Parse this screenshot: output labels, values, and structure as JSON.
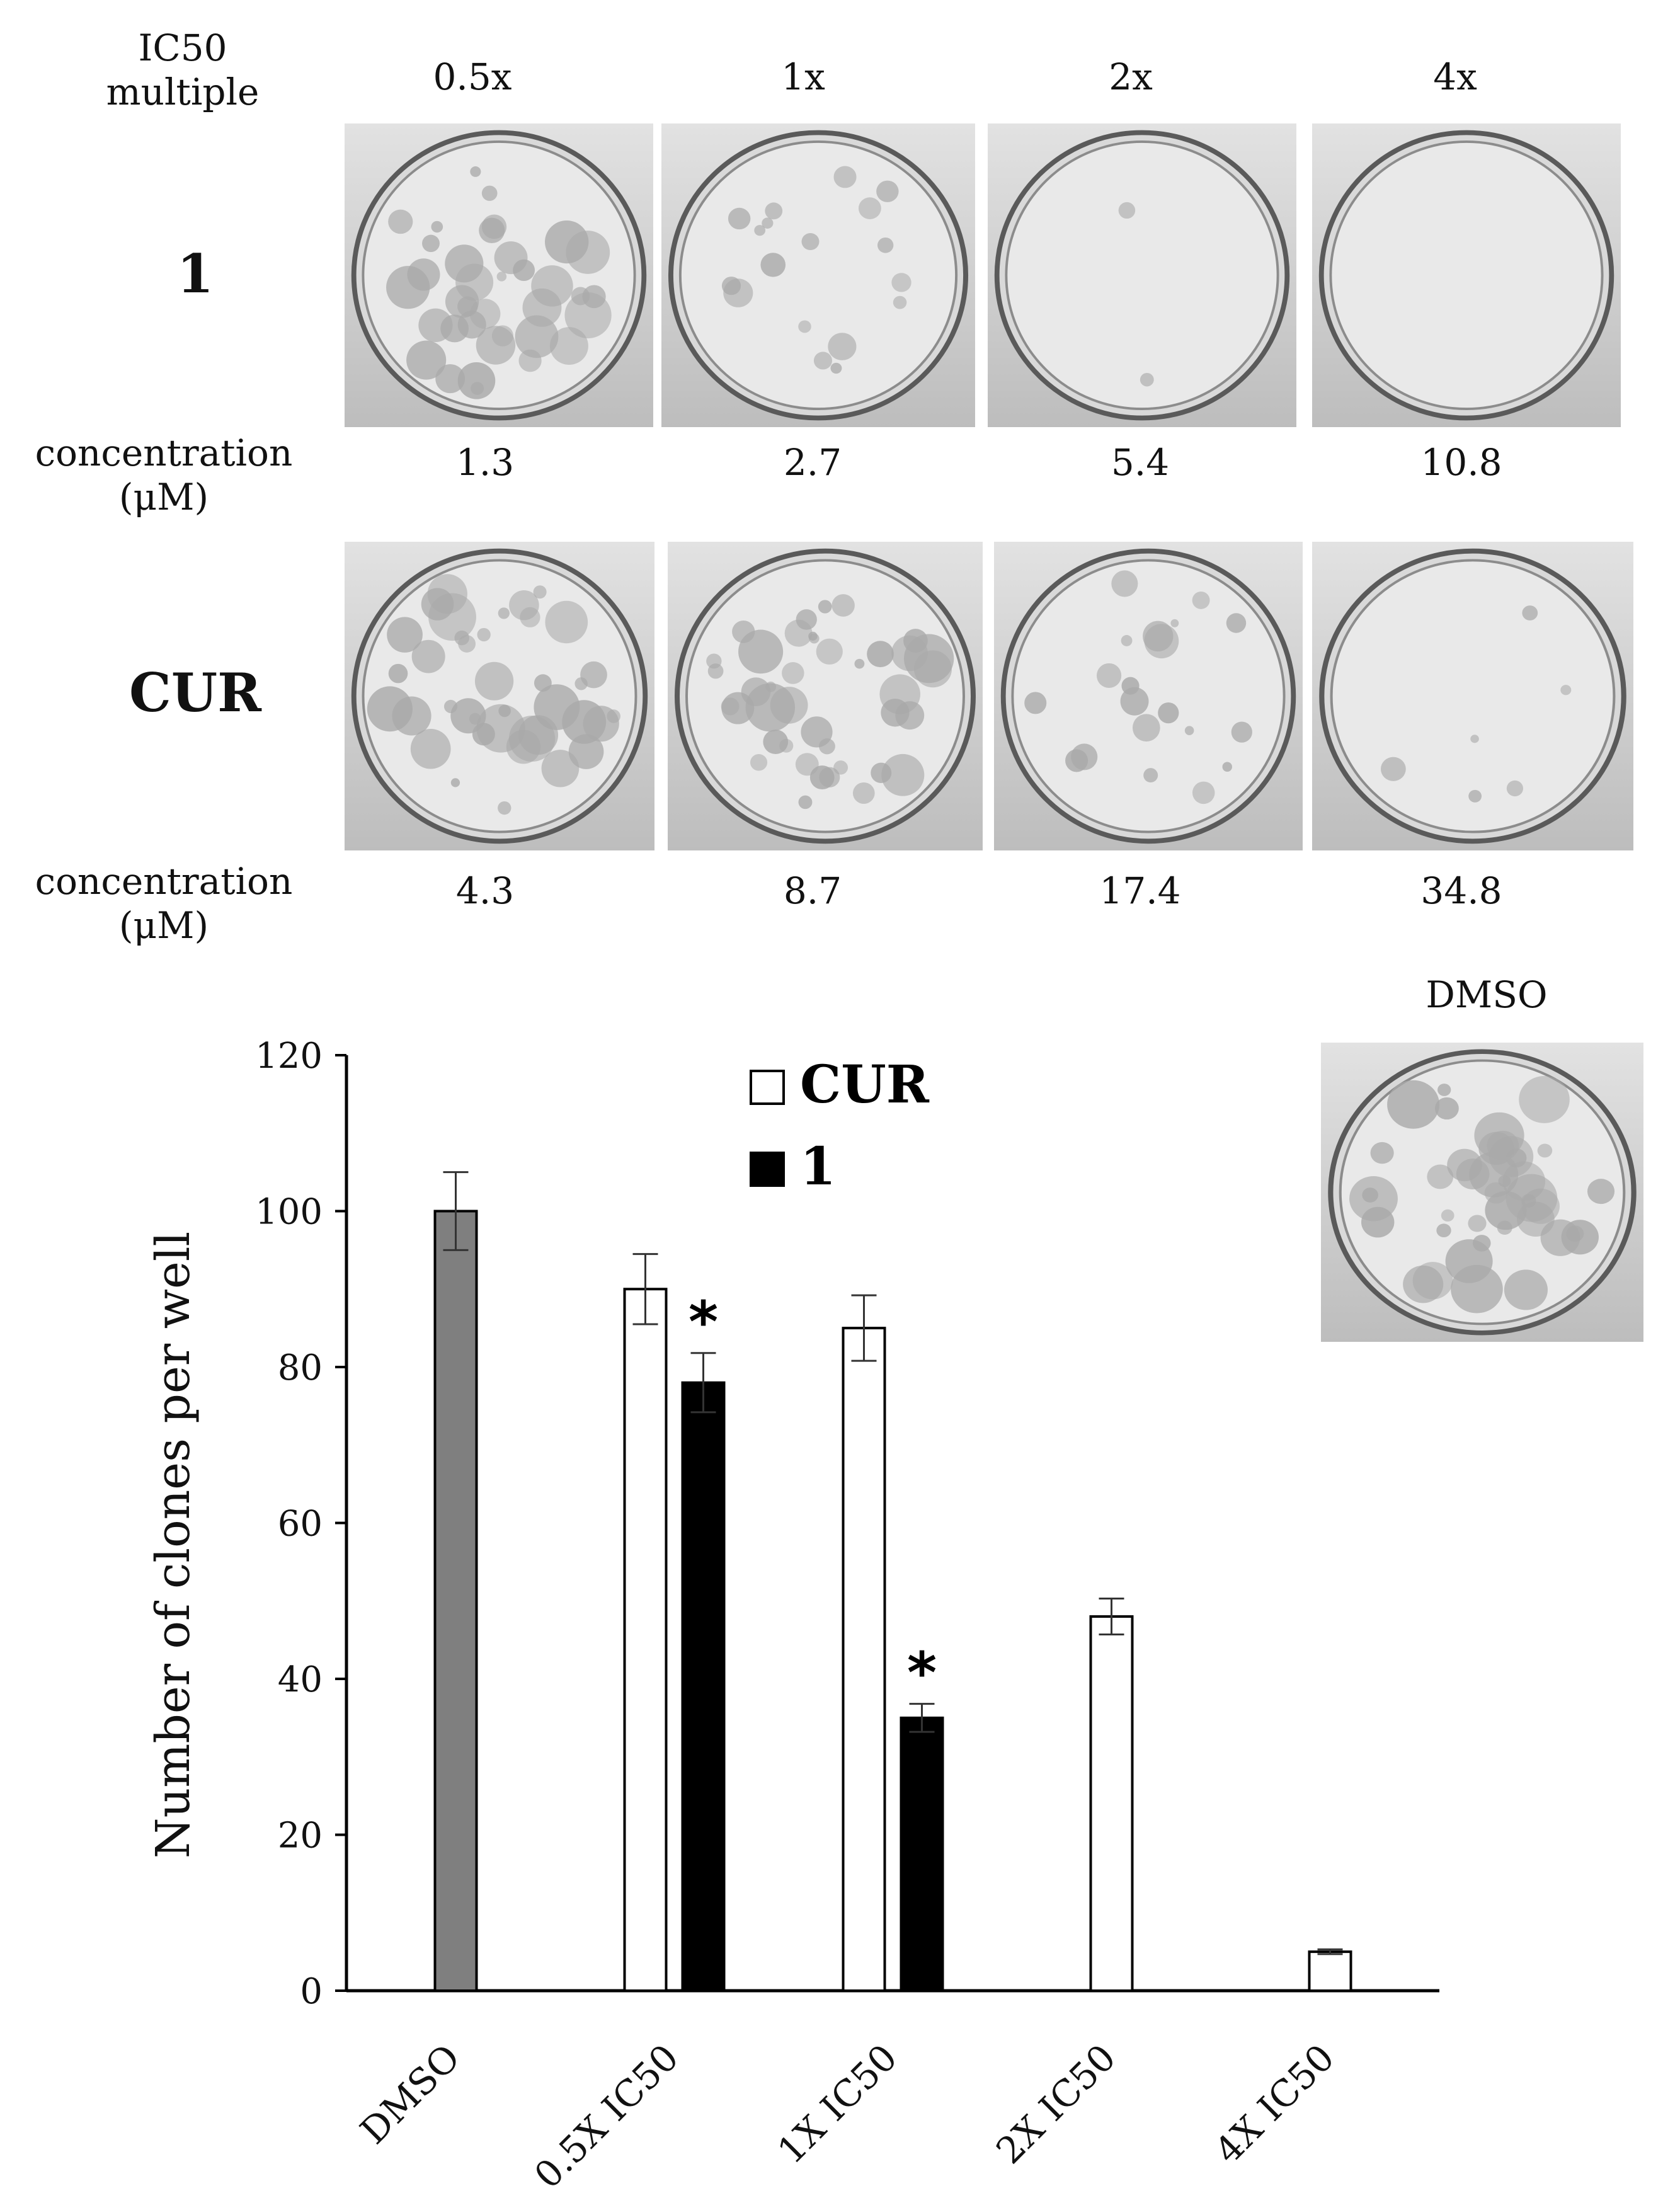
{
  "panel_a": {
    "header_label": "IC50\nmultiple",
    "multiples": [
      "0.5x",
      "1x",
      "2x",
      "4x"
    ],
    "rows": [
      {
        "name": "1",
        "concentration_label": "concentration\n(μM)",
        "concentrations": [
          "1.3",
          "2.7",
          "5.4",
          "10.8"
        ],
        "colony_density": [
          0.9,
          0.45,
          0.05,
          0.0
        ]
      },
      {
        "name": "CUR",
        "concentration_label": "concentration\n(μM)",
        "concentrations": [
          "4.3",
          "8.7",
          "17.4",
          "34.8"
        ],
        "colony_density": [
          0.95,
          1.0,
          0.5,
          0.15
        ]
      }
    ],
    "control": {
      "label": "DMSO",
      "colony_density": 1.0
    }
  },
  "chart_data": {
    "type": "bar",
    "categories": [
      "DMSO",
      "0.5X IC50",
      "1X IC50",
      "2X IC50",
      "4X IC50"
    ],
    "series": [
      {
        "name": "DMSO",
        "values": [
          100,
          null,
          null,
          null,
          null
        ],
        "errors": [
          5,
          null,
          null,
          null,
          null
        ],
        "color": "#7f7f7f"
      },
      {
        "name": "CUR",
        "values": [
          null,
          90,
          85,
          48,
          5
        ],
        "errors": [
          null,
          4.5,
          4.2,
          2.3,
          0.3
        ],
        "color": "#ffffff"
      },
      {
        "name": "1",
        "values": [
          null,
          78,
          35,
          null,
          null
        ],
        "errors": [
          null,
          3.8,
          1.8,
          null,
          null
        ],
        "color": "#000000"
      }
    ],
    "significance": [
      {
        "category": "0.5X IC50",
        "series": "1",
        "mark": "*"
      },
      {
        "category": "1X IC50",
        "series": "1",
        "mark": "*"
      }
    ],
    "ylabel": "Number of clones per well",
    "xlabel": "",
    "ylim": [
      0,
      120
    ],
    "yticks": [
      0,
      20,
      40,
      60,
      80,
      100,
      120
    ],
    "legend": {
      "position": "top-center",
      "entries": [
        "CUR",
        "1"
      ]
    },
    "grid": false
  }
}
